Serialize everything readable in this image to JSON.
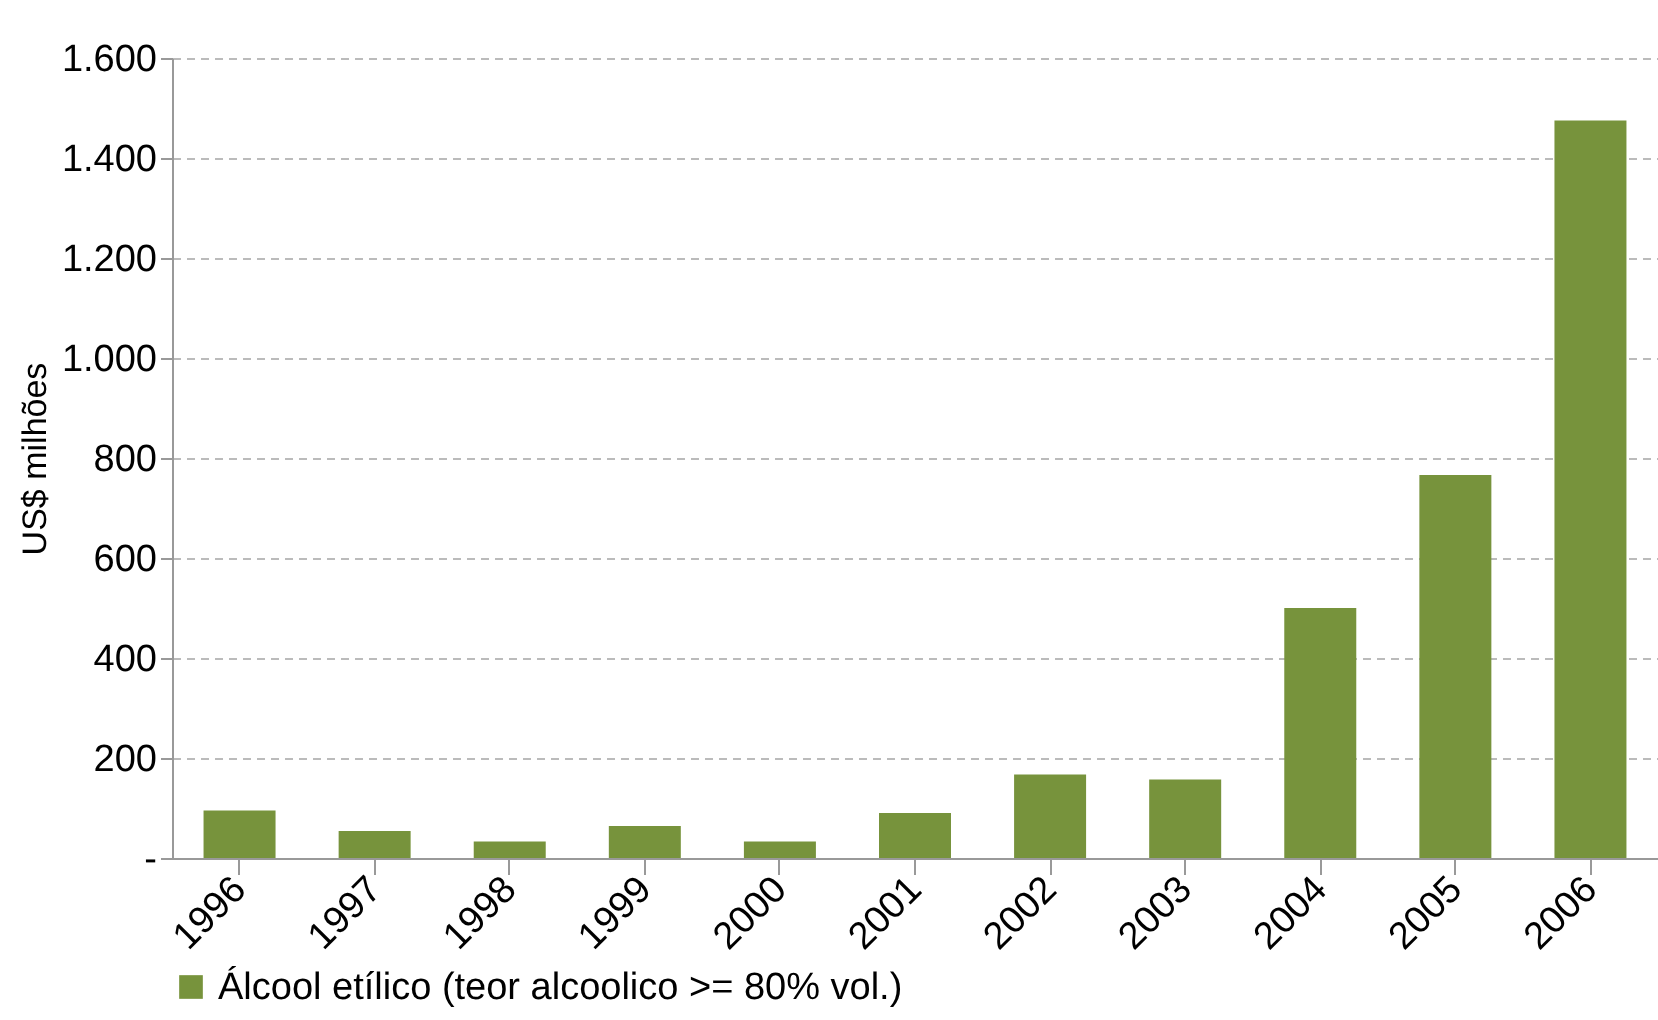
{
  "chart_data": {
    "type": "bar",
    "ylabel": "US$ milhões",
    "categories": [
      "1996",
      "1997",
      "1998",
      "1999",
      "2000",
      "2001",
      "2002",
      "2003",
      "2004",
      "2005",
      "2006"
    ],
    "series": [
      {
        "name": "Álcool etílico (teor alcoolico >= 80% vol.)",
        "color": "#77933c",
        "values": [
          95,
          54,
          33,
          64,
          33,
          90,
          167,
          157,
          500,
          766,
          1475
        ]
      }
    ],
    "ylim": [
      0,
      1600
    ],
    "yticks": [
      {
        "value": 0,
        "label": "-"
      },
      200,
      400,
      600,
      {
        "value": 1000,
        "label": "1.000"
      },
      800,
      {
        "value": 1200,
        "label": "1.200"
      },
      {
        "value": 1400,
        "label": "1.400"
      },
      {
        "value": 1600,
        "label": "1.600"
      }
    ],
    "grid": "y",
    "legend": "bottom"
  }
}
